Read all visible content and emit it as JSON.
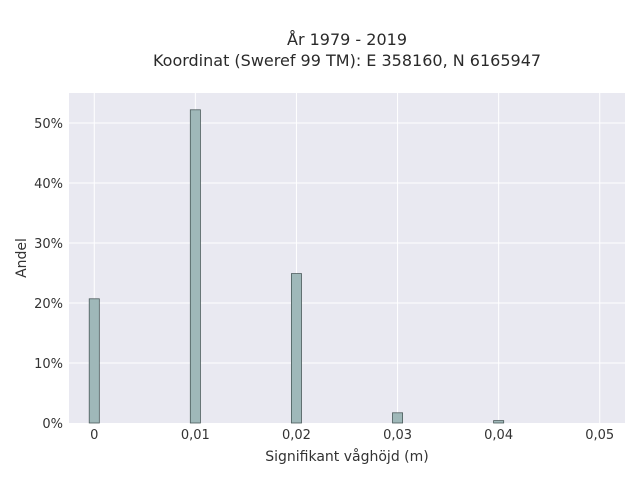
{
  "chart_data": {
    "type": "bar",
    "title_line1": "År 1979 - 2019",
    "title_line2": "Koordinat (Sweref 99 TM): E 358160, N 6165947",
    "xlabel": "Signifikant våghöjd (m)",
    "ylabel": "Andel",
    "x": [
      0,
      0.01,
      0.02,
      0.03,
      0.04
    ],
    "values": [
      20.7,
      52.2,
      24.9,
      1.7,
      0.4
    ],
    "xlim": [
      -0.0025,
      0.0525
    ],
    "ylim": [
      0,
      55
    ],
    "x_ticks": [
      {
        "value": 0,
        "label": "0"
      },
      {
        "value": 0.01,
        "label": "0,01"
      },
      {
        "value": 0.02,
        "label": "0,02"
      },
      {
        "value": 0.03,
        "label": "0,03"
      },
      {
        "value": 0.04,
        "label": "0,04"
      },
      {
        "value": 0.05,
        "label": "0,05"
      }
    ],
    "y_ticks": [
      {
        "value": 0,
        "label": "0%"
      },
      {
        "value": 10,
        "label": "10%"
      },
      {
        "value": 20,
        "label": "20%"
      },
      {
        "value": 30,
        "label": "30%"
      },
      {
        "value": 40,
        "label": "40%"
      },
      {
        "value": 50,
        "label": "50%"
      }
    ],
    "grid": true,
    "colors": {
      "bar_fill": "#9fb8b9",
      "bar_stroke": "#4a5a5a",
      "plot_bg": "#e9e9f1",
      "grid": "#ffffff"
    }
  }
}
